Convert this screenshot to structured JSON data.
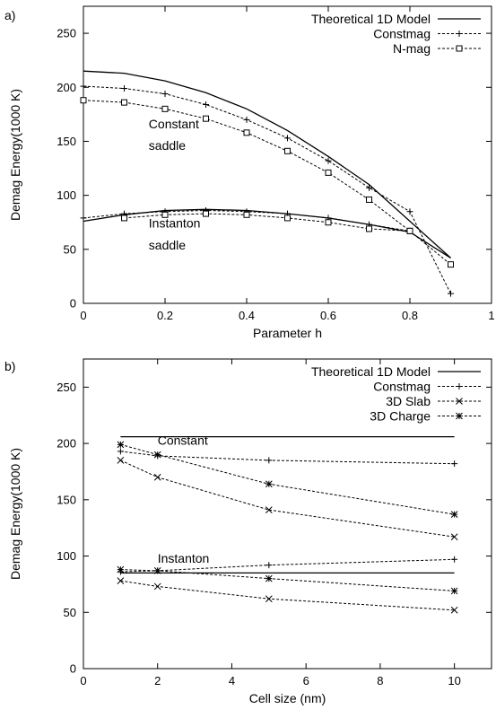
{
  "chart_data": [
    {
      "type": "line",
      "panel_label": "a)",
      "xlabel": "Parameter h",
      "ylabel": "Demag Energy(1000 K)",
      "xlim": [
        0,
        1
      ],
      "ylim": [
        0,
        275
      ],
      "xticks": [
        0,
        0.2,
        0.4,
        0.6,
        0.8,
        1
      ],
      "xtick_labels": [
        "0",
        "0.2",
        "0.4",
        "0.6",
        "0.8",
        "1"
      ],
      "yticks": [
        0,
        50,
        100,
        150,
        200,
        250
      ],
      "ytick_labels": [
        "0",
        "50",
        "100",
        "150",
        "200",
        "250"
      ],
      "legend_position": "top-right",
      "legend": [
        {
          "label": "Theoretical 1D Model",
          "style": "solid",
          "marker": "none"
        },
        {
          "label": "Constmag",
          "style": "dashed",
          "marker": "plus"
        },
        {
          "label": "N-mag",
          "style": "dashed",
          "marker": "square"
        }
      ],
      "annotations": [
        {
          "text": "Constant",
          "x": 0.16,
          "y": 162
        },
        {
          "text": "saddle",
          "x": 0.16,
          "y": 142
        },
        {
          "text": "Instanton",
          "x": 0.16,
          "y": 70
        },
        {
          "text": "saddle",
          "x": 0.16,
          "y": 50
        }
      ],
      "series": [
        {
          "legend_index": 0,
          "style": "solid",
          "marker": "none",
          "x": [
            0,
            0.1,
            0.2,
            0.3,
            0.4,
            0.5,
            0.6,
            0.7,
            0.8,
            0.9
          ],
          "y": [
            215,
            213,
            206,
            195,
            180,
            160,
            136,
            110,
            76,
            42
          ]
        },
        {
          "legend_index": 1,
          "style": "dashed",
          "marker": "plus",
          "x": [
            0,
            0.1,
            0.2,
            0.3,
            0.4,
            0.5,
            0.6,
            0.7,
            0.8,
            0.9
          ],
          "y": [
            201,
            199,
            194,
            184,
            170,
            153,
            132,
            107,
            85,
            9
          ]
        },
        {
          "legend_index": 2,
          "style": "dashed",
          "marker": "square",
          "x": [
            0,
            0.1,
            0.2,
            0.3,
            0.4,
            0.5,
            0.6,
            0.7,
            0.8,
            0.9
          ],
          "y": [
            188,
            186,
            180,
            171,
            158,
            141,
            121,
            96,
            67,
            36
          ]
        },
        {
          "legend_index": 0,
          "style": "solid",
          "marker": "none",
          "x": [
            0,
            0.1,
            0.2,
            0.3,
            0.4,
            0.5,
            0.6,
            0.7,
            0.8,
            0.9
          ],
          "y": [
            76,
            82,
            86,
            87,
            86,
            83,
            79,
            73,
            66,
            42
          ]
        },
        {
          "legend_index": 1,
          "style": "dashed",
          "marker": "plus",
          "x": [
            0,
            0.1,
            0.2,
            0.3,
            0.4,
            0.5,
            0.6,
            0.7,
            0.8
          ],
          "y": [
            79,
            83,
            85,
            86,
            85,
            83,
            79,
            73,
            67
          ]
        },
        {
          "legend_index": 2,
          "style": "dashed",
          "marker": "square",
          "x": [
            0.1,
            0.2,
            0.3,
            0.4,
            0.5,
            0.6,
            0.7,
            0.8
          ],
          "y": [
            79,
            82,
            83,
            82,
            79,
            75,
            69,
            67
          ]
        }
      ]
    },
    {
      "type": "line",
      "panel_label": "b)",
      "xlabel": "Cell size (nm)",
      "ylabel": "Demag Energy(1000 K)",
      "xlim": [
        0,
        11
      ],
      "ylim": [
        0,
        275
      ],
      "xticks": [
        0,
        2,
        4,
        6,
        8,
        10
      ],
      "xtick_labels": [
        "0",
        "2",
        "4",
        "6",
        "8",
        "10"
      ],
      "yticks": [
        0,
        50,
        100,
        150,
        200,
        250
      ],
      "ytick_labels": [
        "0",
        "50",
        "100",
        "150",
        "200",
        "250"
      ],
      "legend_position": "top-right",
      "legend": [
        {
          "label": "Theoretical 1D Model",
          "style": "solid",
          "marker": "none"
        },
        {
          "label": "Constmag",
          "style": "dashed",
          "marker": "plus"
        },
        {
          "label": "3D Slab",
          "style": "dashed",
          "marker": "x"
        },
        {
          "label": "3D Charge",
          "style": "dashed",
          "marker": "star"
        }
      ],
      "annotations": [
        {
          "text": "Constant",
          "x": 2.0,
          "y": 199
        },
        {
          "text": "Instanton",
          "x": 2.0,
          "y": 94
        }
      ],
      "series": [
        {
          "legend_index": 0,
          "style": "solid",
          "marker": "none",
          "x": [
            1,
            10
          ],
          "y": [
            206,
            206
          ]
        },
        {
          "legend_index": 0,
          "style": "solid",
          "marker": "none",
          "x": [
            1,
            10
          ],
          "y": [
            85,
            85
          ]
        },
        {
          "legend_index": 1,
          "style": "dashed",
          "marker": "plus",
          "x": [
            1,
            2,
            5,
            10
          ],
          "y": [
            193,
            189,
            185,
            182
          ]
        },
        {
          "legend_index": 1,
          "style": "dashed",
          "marker": "plus",
          "x": [
            1,
            2,
            5,
            10
          ],
          "y": [
            86,
            87,
            92,
            97
          ]
        },
        {
          "legend_index": 2,
          "style": "dashed",
          "marker": "x",
          "x": [
            1,
            2,
            5,
            10
          ],
          "y": [
            185,
            170,
            141,
            117
          ]
        },
        {
          "legend_index": 2,
          "style": "dashed",
          "marker": "x",
          "x": [
            1,
            2,
            5,
            10
          ],
          "y": [
            78,
            73,
            62,
            52
          ]
        },
        {
          "legend_index": 3,
          "style": "dashed",
          "marker": "star",
          "x": [
            1,
            2,
            5,
            10
          ],
          "y": [
            199,
            190,
            164,
            137
          ]
        },
        {
          "legend_index": 3,
          "style": "dashed",
          "marker": "star",
          "x": [
            1,
            2,
            5,
            10
          ],
          "y": [
            88,
            87,
            80,
            69
          ]
        }
      ]
    }
  ]
}
